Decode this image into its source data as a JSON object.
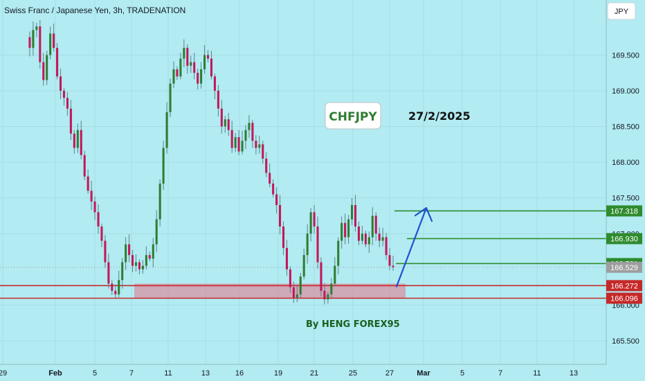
{
  "header": {
    "symbol_text": "Swiss Franc / Japanese Yen, 3h, TRADENATION"
  },
  "currency_button": "JPY",
  "annotations": {
    "pair": "CHFJPY",
    "date": "27/2/2025",
    "author": "By HENG FOREX95"
  },
  "colors": {
    "background": "#b2ebf2",
    "up": "#2e7d32",
    "down": "#c2185b",
    "wick": "#5f7f84",
    "resistance": "#2e8b2e",
    "support": "#c62828",
    "zone": "#e57388",
    "arrow": "#1e50d2",
    "current": "#9e9e9e"
  },
  "chart_data": {
    "type": "candlestick",
    "ylim": [
      165.17,
      170.27
    ],
    "y_ticks": [
      "165.500",
      "166.000",
      "167.000",
      "167.500",
      "168.000",
      "168.500",
      "169.000",
      "169.500"
    ],
    "x_ticks": [
      "29",
      "Feb",
      "5",
      "7",
      "11",
      "13",
      "16",
      "19",
      "21",
      "25",
      "27",
      "Mar",
      "5",
      "7",
      "11",
      "13"
    ],
    "close_series": [
      169.75,
      169.6,
      169.85,
      169.9,
      169.4,
      169.15,
      169.5,
      169.8,
      169.6,
      169.2,
      169.0,
      168.9,
      168.75,
      168.4,
      168.2,
      168.45,
      168.1,
      167.8,
      167.6,
      167.45,
      167.3,
      167.1,
      166.9,
      166.6,
      166.3,
      166.2,
      166.15,
      166.35,
      166.6,
      166.85,
      166.7,
      166.55,
      166.6,
      166.5,
      166.55,
      166.7,
      166.65,
      166.85,
      167.2,
      167.7,
      168.2,
      168.7,
      169.1,
      169.3,
      169.2,
      169.45,
      169.6,
      169.35,
      169.4,
      169.25,
      169.1,
      169.3,
      169.5,
      169.45,
      169.2,
      169.0,
      168.75,
      168.5,
      168.6,
      168.45,
      168.2,
      168.35,
      168.15,
      168.3,
      168.45,
      168.55,
      168.3,
      168.2,
      168.25,
      168.05,
      167.85,
      167.7,
      167.55,
      167.4,
      167.1,
      166.8,
      166.5,
      166.25,
      166.1,
      166.15,
      166.4,
      166.7,
      167.0,
      167.3,
      167.1,
      166.6,
      166.2,
      166.08,
      166.15,
      166.3,
      166.55,
      166.9,
      167.15,
      166.95,
      167.2,
      167.4,
      167.1,
      166.9,
      167.0,
      166.85,
      166.95,
      167.25,
      167.0,
      166.9,
      166.95,
      166.7,
      166.55,
      166.53
    ],
    "levels": [
      {
        "kind": "resistance",
        "price": 167.318,
        "label": "167.318"
      },
      {
        "kind": "resistance",
        "price": 166.93,
        "label": "166.930"
      },
      {
        "kind": "resistance",
        "price": 166.581,
        "label": "166.581"
      },
      {
        "kind": "current",
        "price": 166.529,
        "label": "166.529"
      },
      {
        "kind": "support",
        "price": 166.272,
        "label": "166.272"
      },
      {
        "kind": "support",
        "price": 166.096,
        "label": "166.096"
      }
    ],
    "support_zone": [
      166.1,
      166.3
    ],
    "projection": {
      "from": 166.26,
      "to": 167.36
    }
  }
}
